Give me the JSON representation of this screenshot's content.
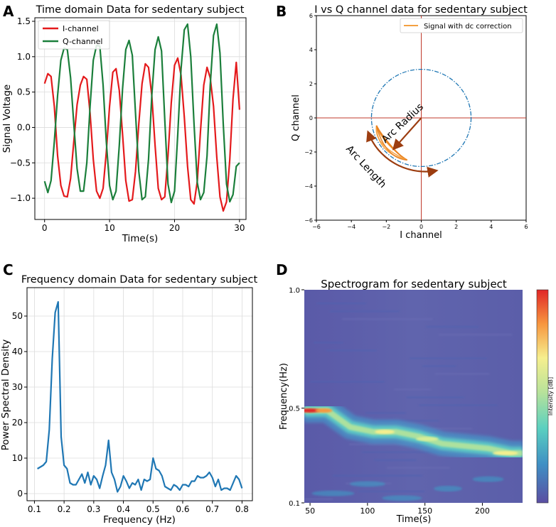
{
  "panel_letters": [
    "A",
    "B",
    "C",
    "D"
  ],
  "colors": {
    "i_channel": "#e41a1c",
    "q_channel": "#1b7f3b",
    "iq_signal": "#f4a040",
    "iq_signal_dark": "#e8801c",
    "crosshair": "#c0392b",
    "circle": "#1f77b4",
    "arrow": "#9c3d10",
    "psd": "#1f77b4",
    "spec_bg": "#5a5eaa"
  },
  "chart_data": [
    {
      "id": "A",
      "type": "line",
      "title": "Time domain Data for sedentary subject",
      "xlabel": "Time(s)",
      "ylabel": "Signal Voltage",
      "xlim": [
        -1.5,
        31
      ],
      "ylim": [
        -1.3,
        1.55
      ],
      "xticks": [
        0,
        10,
        20,
        30
      ],
      "yticks": [
        -1.0,
        -0.5,
        0.0,
        0.5,
        1.0,
        1.5
      ],
      "ytick_labels": [
        "−1.0",
        "−0.5",
        "0.0",
        "0.5",
        "1.0",
        "1.5"
      ],
      "grid": true,
      "legend_position": "top-left",
      "series": [
        {
          "name": "I-channel",
          "color": "i_channel",
          "x": [
            0,
            0.5,
            1,
            1.5,
            2,
            2.5,
            3,
            3.5,
            4,
            4.5,
            5,
            5.5,
            6,
            6.5,
            7,
            7.5,
            8,
            8.5,
            9,
            9.5,
            10,
            10.5,
            11,
            11.5,
            12,
            12.5,
            13,
            13.5,
            14,
            14.5,
            15,
            15.5,
            16,
            16.5,
            17,
            17.5,
            18,
            18.5,
            19,
            19.5,
            20,
            20.5,
            21,
            21.5,
            22,
            22.5,
            23,
            23.5,
            24,
            24.5,
            25,
            25.5,
            26,
            26.5,
            27,
            27.5,
            28,
            28.5,
            29,
            29.5,
            30
          ],
          "y": [
            0.62,
            0.76,
            0.72,
            0.3,
            -0.4,
            -0.82,
            -0.97,
            -0.98,
            -0.72,
            -0.2,
            0.32,
            0.6,
            0.72,
            0.68,
            0.2,
            -0.45,
            -0.9,
            -1.0,
            -0.86,
            -0.35,
            0.3,
            0.78,
            0.83,
            0.52,
            -0.1,
            -0.75,
            -1.04,
            -1.02,
            -0.62,
            0.05,
            0.62,
            0.9,
            0.85,
            0.45,
            -0.25,
            -0.86,
            -1.02,
            -0.98,
            -0.4,
            0.35,
            0.88,
            0.98,
            0.74,
            0.15,
            -0.55,
            -1.02,
            -1.08,
            -0.76,
            -0.05,
            0.6,
            0.85,
            0.7,
            0.3,
            -0.42,
            -0.98,
            -1.18,
            -1.05,
            -0.45,
            0.4,
            0.92,
            0.25
          ]
        },
        {
          "name": "Q-channel",
          "color": "q_channel",
          "x": [
            0,
            0.5,
            1,
            1.5,
            2,
            2.5,
            3,
            3.5,
            4,
            4.5,
            5,
            5.5,
            6,
            6.5,
            7,
            7.5,
            8,
            8.5,
            9,
            9.5,
            10,
            10.5,
            11,
            11.5,
            12,
            12.5,
            13,
            13.5,
            14,
            14.5,
            15,
            15.5,
            16,
            16.5,
            17,
            17.5,
            18,
            18.5,
            19,
            19.5,
            20,
            20.5,
            21,
            21.5,
            22,
            22.5,
            23,
            23.5,
            24,
            24.5,
            25,
            25.5,
            26,
            26.5,
            27,
            27.5,
            28,
            28.5,
            29,
            29.5,
            30
          ],
          "y": [
            -0.76,
            -0.92,
            -0.75,
            -0.2,
            0.45,
            0.95,
            1.12,
            1.1,
            0.7,
            0.05,
            -0.58,
            -0.9,
            -0.9,
            -0.5,
            0.3,
            0.95,
            1.16,
            1.15,
            0.6,
            -0.2,
            -0.82,
            -1.02,
            -0.9,
            -0.25,
            0.55,
            1.1,
            1.23,
            1.02,
            0.2,
            -0.62,
            -1.02,
            -0.98,
            -0.45,
            0.45,
            1.1,
            1.28,
            1.08,
            0.1,
            -0.8,
            -1.06,
            -0.9,
            -0.1,
            0.82,
            1.38,
            1.46,
            1.0,
            0.05,
            -0.78,
            -1.02,
            -0.92,
            -0.4,
            0.6,
            1.3,
            1.46,
            1.05,
            0.05,
            -0.8,
            -1.05,
            -0.95,
            -0.55,
            -0.5
          ]
        }
      ]
    },
    {
      "id": "B",
      "type": "scatter",
      "title": "I vs Q channel data for sedentary subject",
      "xlabel": "I channel",
      "ylabel": "Q channel",
      "xlim": [
        -6,
        6
      ],
      "ylim": [
        -6,
        6
      ],
      "xticks": [
        -6,
        -4,
        -2,
        0,
        2,
        4,
        6
      ],
      "yticks": [
        -6,
        -4,
        -2,
        0,
        2,
        4,
        6
      ],
      "xtick_labels": [
        "−6",
        "−4",
        "−2",
        "0",
        "2",
        "4",
        "6"
      ],
      "ytick_labels": [
        "−6",
        "−4",
        "−2",
        "0",
        "2",
        "4",
        "6"
      ],
      "grid": false,
      "legend_position": "top-right",
      "legend": "Signal with dc correction",
      "circle": {
        "center": [
          0,
          0
        ],
        "radius": 2.85
      },
      "arc_data": {
        "radius": 2.6,
        "angle_start_deg": 190,
        "angle_end_deg": 252
      },
      "annotations": [
        {
          "text": "Arc Radius"
        },
        {
          "text": "Arc Length"
        }
      ]
    },
    {
      "id": "C",
      "type": "line",
      "title": "Frequency domain Data for sedentary subject",
      "xlabel": "Frequency (Hz)",
      "ylabel": "Power Spectral Density",
      "xlim": [
        0.075,
        0.835
      ],
      "ylim": [
        -2,
        58
      ],
      "xticks": [
        0.1,
        0.2,
        0.3,
        0.4,
        0.5,
        0.6,
        0.7,
        0.8
      ],
      "yticks": [
        0,
        10,
        20,
        30,
        40,
        50
      ],
      "grid": true,
      "series": [
        {
          "name": "PSD",
          "color": "psd",
          "x": [
            0.11,
            0.12,
            0.13,
            0.14,
            0.15,
            0.16,
            0.17,
            0.18,
            0.19,
            0.2,
            0.21,
            0.22,
            0.23,
            0.24,
            0.25,
            0.26,
            0.27,
            0.28,
            0.29,
            0.3,
            0.31,
            0.32,
            0.33,
            0.34,
            0.35,
            0.36,
            0.37,
            0.38,
            0.39,
            0.4,
            0.41,
            0.42,
            0.43,
            0.44,
            0.45,
            0.46,
            0.47,
            0.48,
            0.49,
            0.5,
            0.51,
            0.52,
            0.53,
            0.54,
            0.55,
            0.56,
            0.57,
            0.58,
            0.59,
            0.6,
            0.61,
            0.62,
            0.63,
            0.64,
            0.65,
            0.66,
            0.67,
            0.68,
            0.69,
            0.7,
            0.71,
            0.72,
            0.73,
            0.74,
            0.75,
            0.76,
            0.77,
            0.78,
            0.79,
            0.8
          ],
          "y": [
            7,
            7.5,
            8,
            9,
            18,
            38,
            51,
            54,
            16,
            8,
            7,
            3,
            2.5,
            2.5,
            4,
            5.5,
            3,
            6,
            2.5,
            5,
            4,
            1.5,
            5,
            8,
            15,
            6,
            4,
            0.5,
            2,
            5,
            3.5,
            1.5,
            3,
            2.5,
            4,
            1,
            4,
            3.5,
            4,
            10,
            7,
            6.5,
            5,
            2,
            1.5,
            1,
            2.5,
            2,
            1,
            2.5,
            2.5,
            2,
            3.5,
            3.5,
            5,
            4.5,
            4.5,
            5,
            6,
            4.5,
            2,
            4,
            1,
            1.5,
            1.5,
            1,
            3,
            5,
            4,
            1.5
          ]
        }
      ]
    },
    {
      "id": "D",
      "type": "heatmap",
      "title": "Spectrogram for sedentary subject",
      "xlabel": "Time(s)",
      "ylabel": "Frequency(Hz)",
      "xlim": [
        45,
        235
      ],
      "ylim": [
        0.1,
        1.0
      ],
      "xticks": [
        50,
        100,
        150,
        200
      ],
      "yticks": [
        0.1,
        0.5,
        1.0
      ],
      "colorbar_label": "Intensity [dB]",
      "ridge": {
        "x": [
          45,
          65,
          85,
          105,
          125,
          145,
          165,
          185,
          205,
          225,
          235
        ],
        "y": [
          0.49,
          0.49,
          0.42,
          0.4,
          0.4,
          0.38,
          0.35,
          0.34,
          0.33,
          0.31,
          0.31
        ]
      }
    }
  ]
}
